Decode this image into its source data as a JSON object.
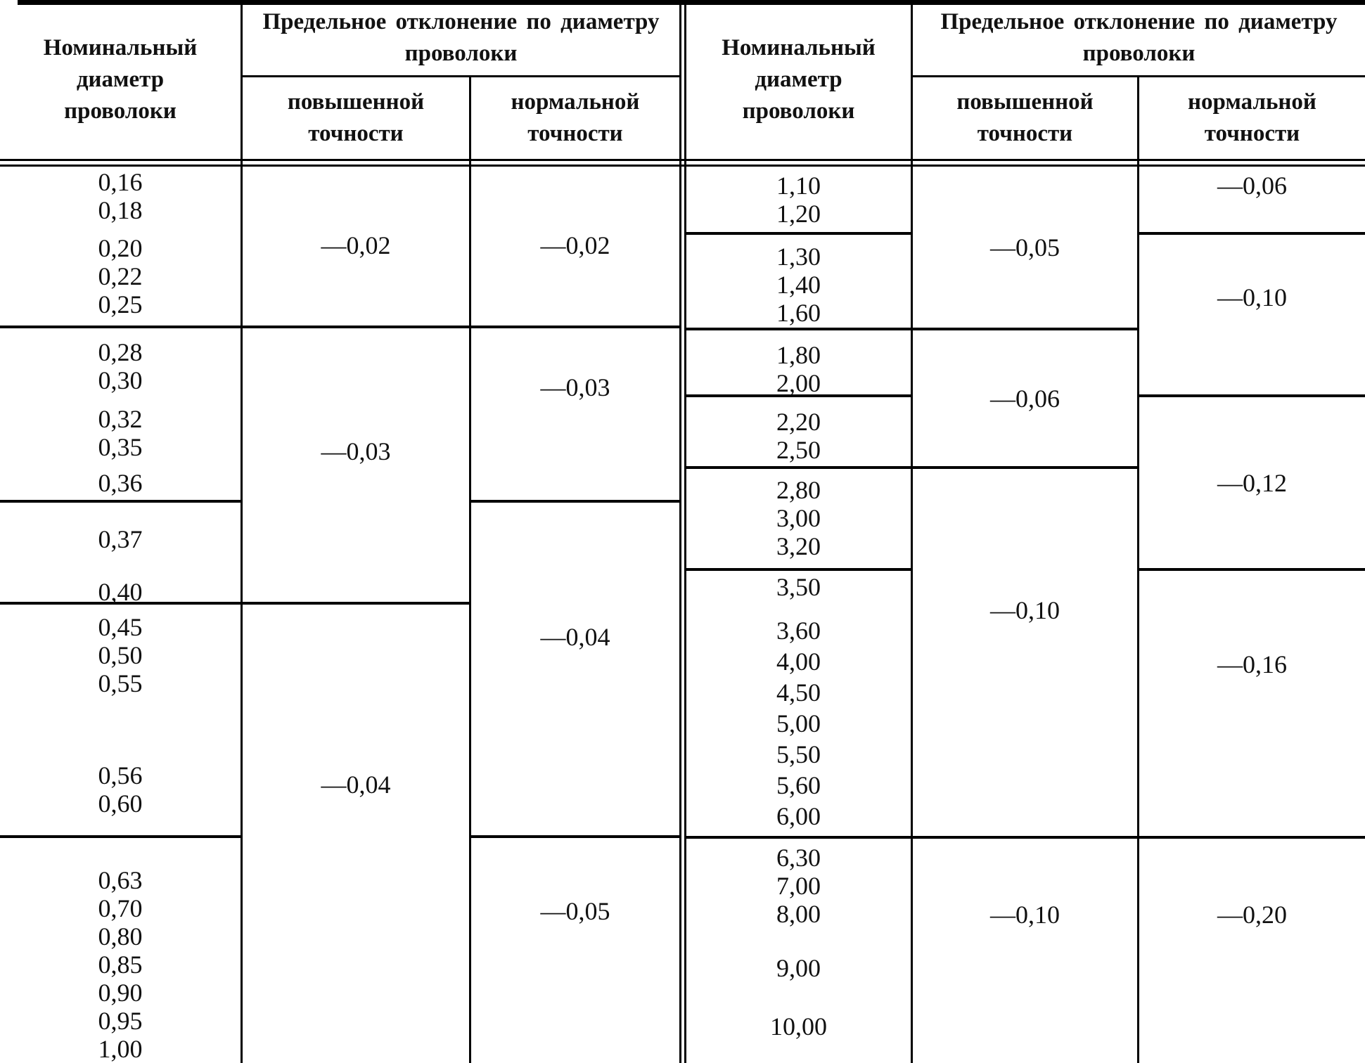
{
  "colors": {
    "line": "#000000",
    "background": "#ffffff",
    "text": "#111111"
  },
  "header": {
    "nominal_diameter": "Номинальный диаметр проволоки",
    "limit_deviation": "Предельное отклонение по диаметру проволоки",
    "increased_accuracy": "повышенной точности",
    "normal_accuracy": "нормальной точности"
  },
  "table": {
    "left": {
      "diameters": [
        [
          "0,16",
          "0,18",
          "0,20",
          "0,22",
          "0,25"
        ],
        [
          "0,28",
          "0,30",
          "0,32",
          "0,35",
          "0,36"
        ],
        [
          "0,37",
          "0,40"
        ],
        [
          "0,45",
          "0,50",
          "0,55",
          "0,56",
          "0,60"
        ],
        [
          "0,63",
          "0,70",
          "0,80",
          "0,85",
          "0,90",
          "0,95",
          "1,00"
        ]
      ],
      "increased": [
        "—0,02",
        "—0,03",
        "—0,04"
      ],
      "normal": [
        "—0,02",
        "—0,03",
        "—0,04",
        "—0,05"
      ]
    },
    "right": {
      "diameters": [
        [
          "1,10",
          "1,20"
        ],
        [
          "1,30",
          "1,40",
          "1,60"
        ],
        [
          "1,80",
          "2,00"
        ],
        [
          "2,20",
          "2,50"
        ],
        [
          "2,80",
          "3,00",
          "3,20"
        ],
        [
          "3,50",
          "3,60",
          "4,00",
          "4,50",
          "5,00",
          "5,50",
          "5,60",
          "6,00"
        ],
        [
          "6,30",
          "7,00",
          "8,00",
          "9,00",
          "10,00"
        ]
      ],
      "increased": [
        "—0,05",
        "—0,06",
        "—0,10",
        "—0,10"
      ],
      "normal": [
        "—0,06",
        "—0,10",
        "—0,12",
        "—0,16",
        "—0,20"
      ]
    }
  }
}
